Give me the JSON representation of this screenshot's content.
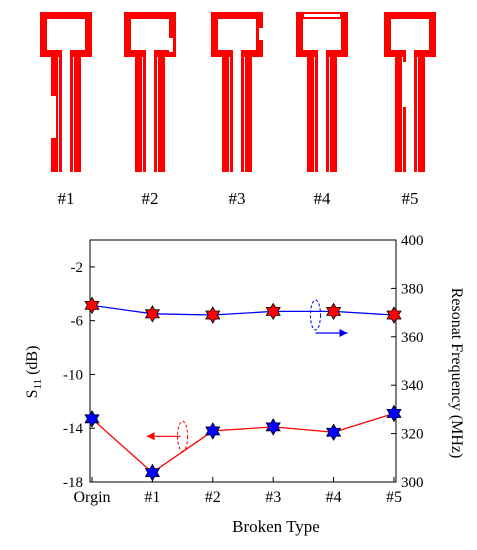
{
  "structures": [
    {
      "label": "#1",
      "defect": "left-arm-gap"
    },
    {
      "label": "#2",
      "defect": "head-right-notch"
    },
    {
      "label": "#3",
      "defect": "head-right-gap"
    },
    {
      "label": "#4",
      "defect": "head-top-slot"
    },
    {
      "label": "#5",
      "defect": "stem-inner-cut"
    }
  ],
  "colors": {
    "structure": "#ff0000",
    "s11_line": "#ff0000",
    "s11_marker": "#0000ff",
    "freq_line": "#0000ff",
    "freq_marker": "#ff0000",
    "axis": "#000000"
  },
  "chart_data": {
    "type": "line",
    "xlabel": "Broken Type",
    "categories": [
      "Orgin",
      "#1",
      "#2",
      "#3",
      "#4",
      "#5"
    ],
    "left_axis": {
      "label_main": "S",
      "label_sub": "11",
      "label_unit": " (dB)",
      "ylim": [
        -18,
        0
      ],
      "ticks": [
        -2,
        -6,
        -10,
        -14,
        -18
      ]
    },
    "right_axis": {
      "label": "Resonat Frequency (MHz)",
      "ylim": [
        300,
        400
      ],
      "ticks": [
        300,
        320,
        340,
        360,
        380,
        400
      ]
    },
    "series": [
      {
        "axis": "left",
        "values": [
          -13.3,
          -17.3,
          -14.2,
          -13.9,
          -14.3,
          -12.9
        ]
      },
      {
        "axis": "right",
        "values": [
          373,
          369.5,
          369,
          370.5,
          370.5,
          369
        ]
      }
    ],
    "annotations": [
      {
        "series": 0,
        "arrow": "left",
        "anchor_category": 1.5,
        "anchor_value": -14.6
      },
      {
        "series": 1,
        "arrow": "right",
        "anchor_category": 3.7,
        "anchor_value": 369
      }
    ],
    "grid": false,
    "legend": "none"
  }
}
